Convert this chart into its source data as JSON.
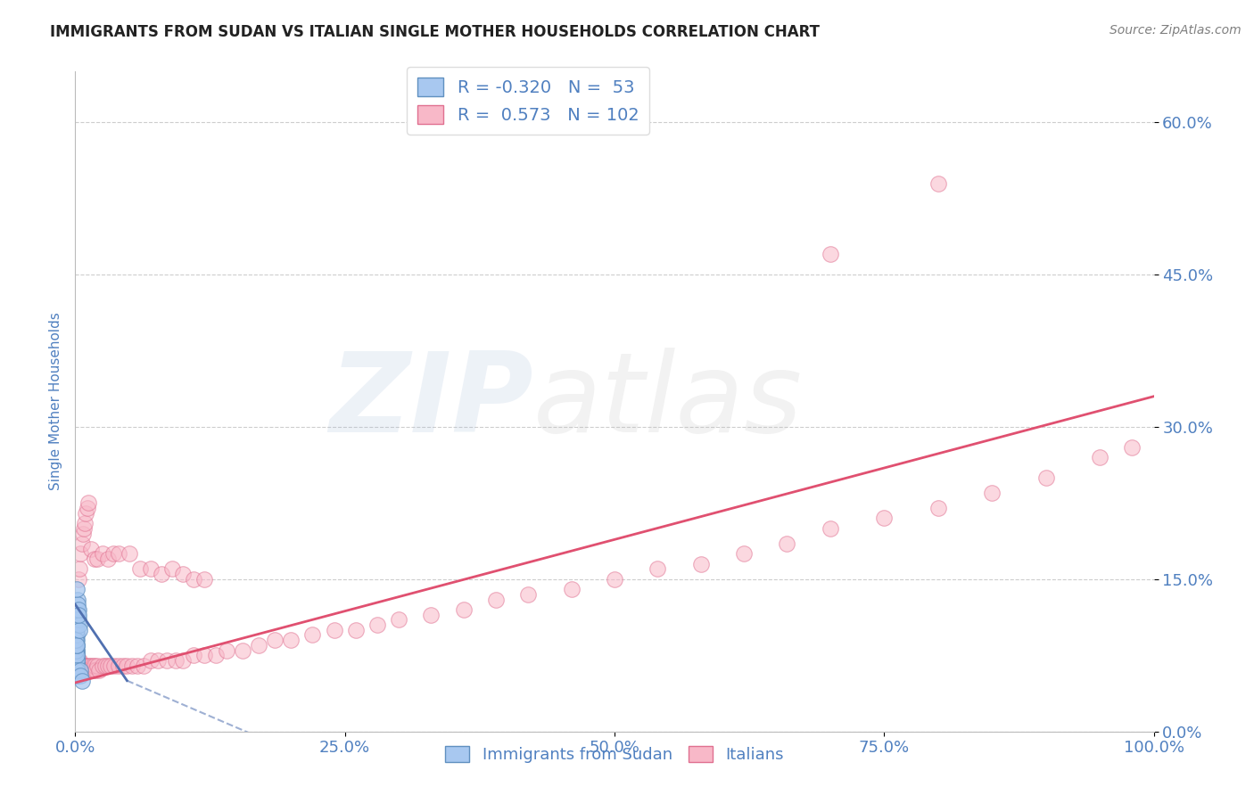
{
  "title": "IMMIGRANTS FROM SUDAN VS ITALIAN SINGLE MOTHER HOUSEHOLDS CORRELATION CHART",
  "source_text": "Source: ZipAtlas.com",
  "ylabel": "Single Mother Households",
  "xlim": [
    0.0,
    1.0
  ],
  "ylim": [
    0.0,
    0.65
  ],
  "yticks": [
    0.0,
    0.15,
    0.3,
    0.45,
    0.6
  ],
  "ytick_labels": [
    "0.0%",
    "15.0%",
    "30.0%",
    "45.0%",
    "60.0%"
  ],
  "xticks": [
    0.0,
    0.25,
    0.5,
    0.75,
    1.0
  ],
  "xtick_labels": [
    "0.0%",
    "25.0%",
    "50.0%",
    "75.0%",
    "100.0%"
  ],
  "background_color": "#ffffff",
  "grid_color": "#c8c8c8",
  "series1_label": "Immigrants from Sudan",
  "series1_R": -0.32,
  "series1_N": 53,
  "series1_color": "#a8c8f0",
  "series1_edge_color": "#6090c0",
  "series2_label": "Italians",
  "series2_R": 0.573,
  "series2_N": 102,
  "series2_color": "#f8b8c8",
  "series2_edge_color": "#e07090",
  "trend1_color": "#5070b0",
  "trend2_color": "#e05070",
  "title_color": "#222222",
  "tick_label_color": "#5080c0",
  "source_color": "#808080",
  "legend_color": "#5080c0",
  "watermark_zip_color": "#a0b8d8",
  "watermark_atlas_color": "#b8b8b8",
  "sudan_x": [
    0.0008,
    0.001,
    0.0012,
    0.0009,
    0.0011,
    0.0015,
    0.0007,
    0.0013,
    0.001,
    0.0008,
    0.0014,
    0.0011,
    0.0009,
    0.0016,
    0.001,
    0.0012,
    0.0008,
    0.0013,
    0.0011,
    0.0009,
    0.001,
    0.0015,
    0.0012,
    0.0008,
    0.0011,
    0.0013,
    0.0009,
    0.0014,
    0.001,
    0.0012,
    0.0011,
    0.0009,
    0.0013,
    0.001,
    0.0008,
    0.0015,
    0.0012,
    0.0011,
    0.0009,
    0.001,
    0.002,
    0.0025,
    0.0018,
    0.0022,
    0.003,
    0.0015,
    0.0035,
    0.0028,
    0.004,
    0.0032,
    0.005,
    0.0045,
    0.006
  ],
  "sudan_y": [
    0.065,
    0.07,
    0.075,
    0.08,
    0.06,
    0.055,
    0.085,
    0.065,
    0.07,
    0.075,
    0.06,
    0.08,
    0.065,
    0.07,
    0.085,
    0.055,
    0.075,
    0.06,
    0.08,
    0.065,
    0.07,
    0.06,
    0.075,
    0.09,
    0.065,
    0.07,
    0.08,
    0.055,
    0.075,
    0.06,
    0.095,
    0.1,
    0.09,
    0.085,
    0.11,
    0.105,
    0.095,
    0.1,
    0.09,
    0.085,
    0.12,
    0.115,
    0.13,
    0.125,
    0.11,
    0.14,
    0.105,
    0.12,
    0.1,
    0.115,
    0.06,
    0.055,
    0.05
  ],
  "italian_x": [
    0.001,
    0.002,
    0.003,
    0.003,
    0.004,
    0.004,
    0.005,
    0.005,
    0.006,
    0.006,
    0.007,
    0.007,
    0.008,
    0.008,
    0.009,
    0.009,
    0.01,
    0.01,
    0.011,
    0.012,
    0.013,
    0.014,
    0.015,
    0.016,
    0.017,
    0.018,
    0.019,
    0.02,
    0.022,
    0.025,
    0.028,
    0.03,
    0.033,
    0.036,
    0.04,
    0.044,
    0.048,
    0.053,
    0.058,
    0.063,
    0.07,
    0.077,
    0.085,
    0.093,
    0.1,
    0.11,
    0.12,
    0.13,
    0.14,
    0.155,
    0.17,
    0.185,
    0.2,
    0.22,
    0.24,
    0.26,
    0.28,
    0.3,
    0.33,
    0.36,
    0.39,
    0.42,
    0.46,
    0.5,
    0.54,
    0.58,
    0.62,
    0.66,
    0.7,
    0.75,
    0.8,
    0.85,
    0.9,
    0.95,
    0.98,
    0.003,
    0.004,
    0.005,
    0.006,
    0.007,
    0.008,
    0.009,
    0.01,
    0.011,
    0.012,
    0.015,
    0.018,
    0.02,
    0.025,
    0.03,
    0.035,
    0.04,
    0.05,
    0.06,
    0.07,
    0.08,
    0.09,
    0.1,
    0.11,
    0.12,
    0.7,
    0.8
  ],
  "italian_y": [
    0.06,
    0.065,
    0.07,
    0.06,
    0.065,
    0.07,
    0.06,
    0.065,
    0.06,
    0.065,
    0.06,
    0.065,
    0.06,
    0.065,
    0.06,
    0.065,
    0.06,
    0.065,
    0.06,
    0.065,
    0.06,
    0.065,
    0.06,
    0.065,
    0.06,
    0.065,
    0.06,
    0.065,
    0.06,
    0.065,
    0.065,
    0.065,
    0.065,
    0.065,
    0.065,
    0.065,
    0.065,
    0.065,
    0.065,
    0.065,
    0.07,
    0.07,
    0.07,
    0.07,
    0.07,
    0.075,
    0.075,
    0.075,
    0.08,
    0.08,
    0.085,
    0.09,
    0.09,
    0.095,
    0.1,
    0.1,
    0.105,
    0.11,
    0.115,
    0.12,
    0.13,
    0.135,
    0.14,
    0.15,
    0.16,
    0.165,
    0.175,
    0.185,
    0.2,
    0.21,
    0.22,
    0.235,
    0.25,
    0.27,
    0.28,
    0.15,
    0.16,
    0.175,
    0.185,
    0.195,
    0.2,
    0.205,
    0.215,
    0.22,
    0.225,
    0.18,
    0.17,
    0.17,
    0.175,
    0.17,
    0.175,
    0.175,
    0.175,
    0.16,
    0.16,
    0.155,
    0.16,
    0.155,
    0.15,
    0.15,
    0.47,
    0.54
  ],
  "trend_pink_x0": 0.0,
  "trend_pink_y0": 0.048,
  "trend_pink_x1": 1.0,
  "trend_pink_y1": 0.33,
  "trend_blue_x0": 0.0,
  "trend_blue_y0": 0.125,
  "trend_blue_x1": 0.048,
  "trend_blue_y1": 0.05,
  "trend_blue_dash_x0": 0.048,
  "trend_blue_dash_y0": 0.05,
  "trend_blue_dash_x1": 0.18,
  "trend_blue_dash_y1": -0.01
}
